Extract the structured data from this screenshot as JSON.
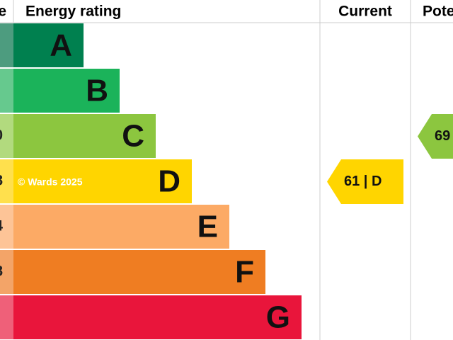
{
  "header": {
    "score": "e",
    "rating": "Energy rating",
    "current": "Current",
    "potential": "Pote"
  },
  "rows": [
    {
      "score": "",
      "band": "A",
      "color": "#00804f",
      "strip": "#4d9c7f"
    },
    {
      "score": "",
      "band": "B",
      "color": "#1bb35a",
      "strip": "#66c98e"
    },
    {
      "score": "0",
      "band": "C",
      "color": "#8cc63f",
      "strip": "#b2da7e"
    },
    {
      "score": "8",
      "band": "D",
      "color": "#ffd500",
      "strip": "#ffe04d"
    },
    {
      "score": "4",
      "band": "E",
      "color": "#fcaa65",
      "strip": "#fdc497"
    },
    {
      "score": "8",
      "band": "F",
      "color": "#ef7d22",
      "strip": "#f3a468"
    },
    {
      "score": "",
      "band": "G",
      "color": "#e9153b",
      "strip": "#ef6079"
    }
  ],
  "watermark": "© Wards 2025",
  "current": {
    "label": "61 | D",
    "row": 3
  },
  "potential": {
    "label": "69",
    "row": 2
  }
}
